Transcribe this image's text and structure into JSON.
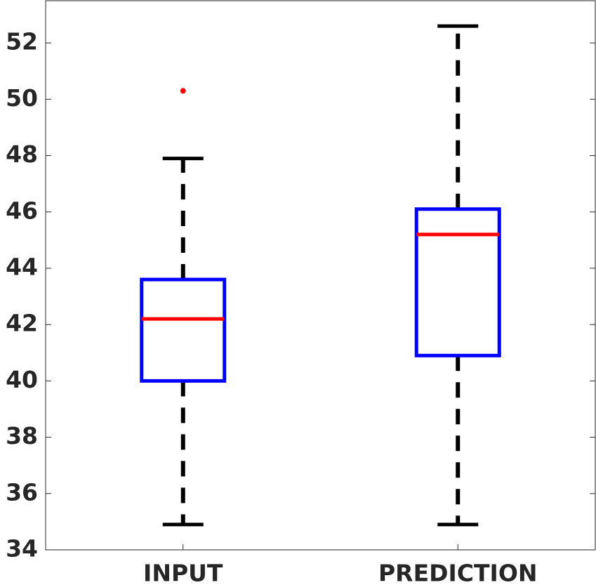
{
  "chart_data": {
    "type": "box",
    "categories": [
      "INPUT",
      "PREDICTION"
    ],
    "boxes": [
      {
        "whislo": 34.9,
        "q1": 40.0,
        "med": 42.2,
        "q3": 43.6,
        "whishi": 47.9,
        "fliers": [
          50.3
        ]
      },
      {
        "whislo": 34.9,
        "q1": 40.9,
        "med": 45.2,
        "q3": 46.1,
        "whishi": 52.6,
        "fliers": []
      }
    ],
    "ylim": [
      34,
      53.5
    ],
    "yticks": [
      34,
      36,
      38,
      40,
      42,
      44,
      46,
      48,
      50,
      52
    ],
    "box_color": "#0000ff",
    "median_color": "#ff0000",
    "whisker_color": "#000000",
    "flier_color": "#ff0000"
  }
}
